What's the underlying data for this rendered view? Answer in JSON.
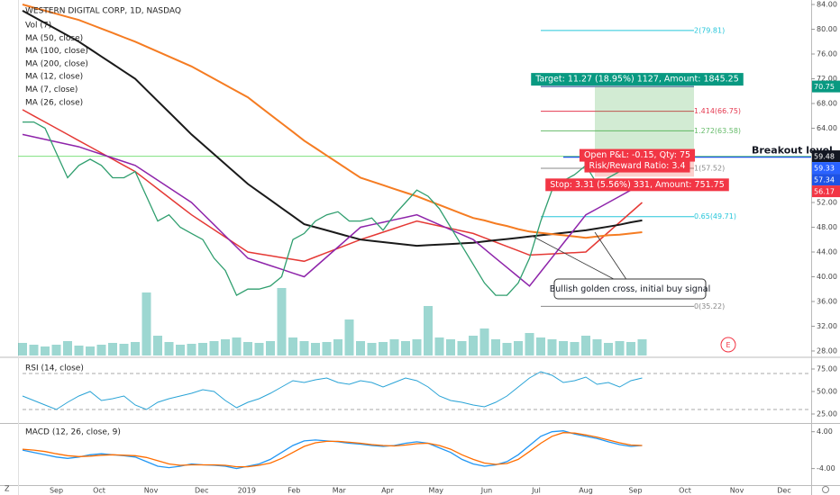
{
  "chart_data": [
    {
      "type": "line",
      "title": "WESTERN DIGITAL CORP, 1D, NASDAQ",
      "xlim": [
        0,
        70
      ],
      "xticks": [
        {
          "value": 3,
          "label": "Sep"
        },
        {
          "value": 6.8,
          "label": "Oct"
        },
        {
          "value": 11.4,
          "label": "Nov"
        },
        {
          "value": 15.9,
          "label": "Dec"
        },
        {
          "value": 19.9,
          "label": "2019"
        },
        {
          "value": 24.1,
          "label": "Feb"
        },
        {
          "value": 28.1,
          "label": "Mar"
        },
        {
          "value": 32.4,
          "label": "Apr"
        },
        {
          "value": 36.7,
          "label": "May"
        },
        {
          "value": 41.2,
          "label": "Jun"
        },
        {
          "value": 45.6,
          "label": "Jul"
        },
        {
          "value": 50,
          "label": "Aug"
        },
        {
          "value": 54.4,
          "label": "Sep"
        },
        {
          "value": 58.8,
          "label": "Oct"
        },
        {
          "value": 63.4,
          "label": "Nov"
        },
        {
          "value": 67.6,
          "label": "Dec"
        }
      ],
      "ylim": [
        27.27,
        84.73
      ],
      "yticks": [
        {
          "value": 84,
          "label": "84.00"
        },
        {
          "value": 80,
          "label": "80.00"
        },
        {
          "value": 76,
          "label": "76.00"
        },
        {
          "value": 72,
          "label": "72.00"
        },
        {
          "value": 68,
          "label": "68.00"
        },
        {
          "value": 64,
          "label": "64.00"
        },
        {
          "value": 52,
          "label": "52.00"
        },
        {
          "value": 48,
          "label": "48.00"
        },
        {
          "value": 44,
          "label": "44.00"
        },
        {
          "value": 40,
          "label": "40.00"
        },
        {
          "value": 36,
          "label": "36.00"
        },
        {
          "value": 32,
          "label": "32.00"
        },
        {
          "value": 28,
          "label": "28.00"
        }
      ],
      "price": {
        "color": "#2f9e6e",
        "values": [
          65,
          65,
          64,
          60,
          56,
          58,
          59,
          58,
          56,
          56,
          57,
          53,
          49,
          50,
          48,
          47,
          46,
          43,
          41,
          37,
          38,
          38,
          38.5,
          40,
          46,
          47,
          49,
          50,
          50.5,
          49,
          49,
          49.5,
          47.5,
          50,
          52,
          54,
          53,
          51,
          48,
          45,
          42,
          39,
          37,
          37,
          39,
          43,
          49,
          54,
          55.5,
          56.5,
          58,
          55,
          56,
          57,
          58,
          57.34
        ]
      },
      "volume": {
        "name": "Vol (7)",
        "color": "#26a69a",
        "vlim": [
          0,
          100
        ],
        "values": [
          14,
          12,
          10,
          12,
          16,
          11,
          10,
          12,
          14,
          13,
          15,
          70,
          22,
          15,
          12,
          13,
          14,
          16,
          18,
          20,
          15,
          14,
          16,
          75,
          20,
          16,
          14,
          15,
          18,
          40,
          16,
          14,
          15,
          18,
          16,
          18,
          55,
          20,
          18,
          16,
          22,
          30,
          18,
          14,
          16,
          25,
          20,
          18,
          16,
          15,
          22,
          18,
          14,
          16,
          15,
          18
        ]
      },
      "series": [
        {
          "name": "MA (50, close)",
          "color": "#e53935",
          "values": [
            67,
            66,
            65,
            64,
            63,
            62,
            61,
            60,
            59,
            58,
            57,
            55.6,
            54.2,
            52.8,
            51.4,
            50,
            48.8,
            47.6,
            46.4,
            45.2,
            44,
            43.7,
            43.4,
            43.1,
            42.8,
            42.5,
            43.2,
            43.9,
            44.6,
            45.3,
            46,
            46.6,
            47.2,
            47.8,
            48.4,
            49,
            48.6,
            48.2,
            47.8,
            47.4,
            47,
            46.3,
            45.6,
            44.9,
            44.2,
            43.5,
            43.6,
            43.7,
            43.8,
            43.9,
            44,
            45.6,
            47.2,
            48.8,
            50.4,
            52
          ]
        },
        {
          "name": "MA (100, close)",
          "color": "#1a1a1a",
          "values": [
            83,
            82,
            81,
            80,
            79,
            78,
            76.8,
            75.6,
            74.4,
            73.2,
            72,
            70.2,
            68.4,
            66.6,
            64.8,
            63,
            61.4,
            59.8,
            58.2,
            56.6,
            55,
            53.7,
            52.4,
            51.1,
            49.8,
            48.5,
            48,
            47.5,
            47,
            46.5,
            46,
            45.8,
            45.6,
            45.4,
            45.2,
            45,
            45.1,
            45.2,
            45.3,
            45.4,
            45.5,
            45.7,
            45.9,
            46.1,
            46.3,
            46.5,
            46.7,
            46.9,
            47.1,
            47.3,
            47.5,
            47.8,
            48.1,
            48.4,
            48.8,
            49.1
          ]
        },
        {
          "name": "MA (200, close)",
          "color": "#f57c22",
          "values": [
            84,
            83.5,
            83,
            82.5,
            82,
            81.5,
            80.8,
            80.1,
            79.4,
            78.7,
            78,
            77.2,
            76.4,
            75.6,
            74.8,
            74,
            73,
            72,
            71,
            70,
            69,
            67.6,
            66.2,
            64.8,
            63.4,
            62,
            60.8,
            59.6,
            58.4,
            57.2,
            56,
            55.4,
            54.8,
            54.2,
            53.6,
            53,
            52.3,
            51.6,
            50.9,
            50.2,
            49.5,
            49.1,
            48.6,
            48.2,
            47.7,
            47.3,
            47.1,
            46.9,
            46.7,
            46.5,
            46.3,
            46.5,
            46.7,
            46.8,
            47,
            47.2
          ]
        },
        {
          "name": "MA (26, close)",
          "color": "#8e24aa",
          "values": [
            63,
            62.6,
            62.2,
            61.8,
            61.4,
            61,
            60.4,
            59.8,
            59.2,
            58.6,
            58,
            56.8,
            55.6,
            54.4,
            53.2,
            52,
            50.2,
            48.4,
            46.6,
            44.8,
            43,
            42.4,
            41.8,
            41.2,
            40.6,
            40,
            41.6,
            43.2,
            44.8,
            46.4,
            48,
            48.4,
            48.8,
            49.2,
            49.6,
            50,
            49.2,
            48.4,
            47.6,
            46.8,
            46,
            44.5,
            43,
            41.5,
            40,
            38.5,
            40.8,
            43.1,
            45.4,
            47.7,
            50,
            51,
            52,
            53,
            54,
            55
          ]
        }
      ],
      "legend_extra": [
        "MA (12, close)",
        "MA (7, close)"
      ],
      "fib": {
        "start": 46,
        "end": 59.6,
        "levels": [
          {
            "value": 79.81,
            "label": "2(79.81)",
            "color": "#26c6da"
          },
          {
            "value": 70.75,
            "color": "#1e3a8a"
          },
          {
            "value": 66.75,
            "label": "1.414(66.75)",
            "color": "#e53950"
          },
          {
            "value": 63.58,
            "label": "1.272(63.58)",
            "color": "#66bb6a"
          },
          {
            "value": 57.52,
            "label": "1(57.52)",
            "color": "#888888"
          },
          {
            "value": 49.71,
            "label": "0.65(49.71)",
            "color": "#26c6da"
          },
          {
            "value": 35.22,
            "label": "0(35.22)",
            "color": "#888888"
          }
        ]
      },
      "position": {
        "start": 50.8,
        "end": 59.6,
        "entry": 59.48,
        "target": 70.75,
        "stop": 56.17,
        "target_label": "Target: 11.27 (18.95%) 1127, Amount: 1845.25",
        "pnl_label": "Open P&L: -0.15, Qty: 75",
        "rr_label": "Risk/Reward Ratio: 3.4",
        "stop_label": "Stop: 3.31 (5.56%) 331, Amount: 751.75"
      },
      "breakout": {
        "value": 59.33,
        "start": 48,
        "label": "Breakout level."
      },
      "annotation": "Bullish golden cross, initial buy signal",
      "price_tags": [
        {
          "value": 70.75,
          "color": "#089981"
        },
        {
          "value": 59.48,
          "color": "#131722"
        },
        {
          "value": 59.33,
          "color": "#2962ff"
        },
        {
          "value": 57.34,
          "color": "#1e53e5"
        },
        {
          "value": 56.17,
          "color": "#f23645"
        }
      ]
    },
    {
      "type": "line",
      "title": "RSI (14, close)",
      "ylim": [
        15,
        85
      ],
      "yticks": [
        {
          "value": 75,
          "label": "75.00"
        },
        {
          "value": 50,
          "label": "50.00"
        },
        {
          "value": 25,
          "label": "25.00"
        }
      ],
      "bands": [
        70,
        30
      ],
      "series": [
        {
          "color": "#29a3d6",
          "values": [
            45,
            40,
            35,
            30,
            38,
            45,
            50,
            40,
            42,
            45,
            35,
            30,
            38,
            42,
            45,
            48,
            52,
            50,
            40,
            32,
            38,
            42,
            48,
            55,
            62,
            60,
            63,
            65,
            60,
            58,
            62,
            60,
            55,
            60,
            65,
            62,
            55,
            45,
            40,
            38,
            35,
            33,
            38,
            45,
            55,
            65,
            72,
            68,
            60,
            62,
            66,
            58,
            60,
            55,
            62,
            65
          ]
        }
      ]
    },
    {
      "type": "line",
      "title": "MACD (12, 26, close, 9)",
      "ylim": [
        -7.4,
        5.5
      ],
      "yticks": [
        {
          "value": 4,
          "label": "4.00"
        },
        {
          "value": -4,
          "label": "-4.00"
        }
      ],
      "series": [
        {
          "color": "#2196f3",
          "values": [
            0,
            -0.5,
            -1,
            -1.5,
            -1.8,
            -1.5,
            -1,
            -0.8,
            -1,
            -1.2,
            -1.5,
            -2.5,
            -3.5,
            -3.8,
            -3.5,
            -3,
            -3.2,
            -3.3,
            -3.5,
            -4,
            -3.5,
            -3,
            -2,
            -0.5,
            1,
            2,
            2.2,
            2,
            1.8,
            1.5,
            1.3,
            1,
            0.8,
            1,
            1.5,
            1.8,
            1.5,
            0.5,
            -0.5,
            -2,
            -3,
            -3.5,
            -3.2,
            -2.5,
            -1,
            1,
            3,
            4,
            4.2,
            3.5,
            3,
            2.5,
            1.8,
            1.2,
            0.8,
            1
          ]
        },
        {
          "color": "#ff6d00",
          "values": [
            0.2,
            0,
            -0.3,
            -0.8,
            -1.2,
            -1.4,
            -1.3,
            -1.1,
            -1,
            -1.1,
            -1.2,
            -1.6,
            -2.3,
            -3,
            -3.3,
            -3.2,
            -3.2,
            -3.2,
            -3.3,
            -3.6,
            -3.6,
            -3.3,
            -2.8,
            -1.8,
            -0.5,
            0.8,
            1.6,
            1.9,
            1.9,
            1.7,
            1.5,
            1.2,
            1,
            0.9,
            1.1,
            1.4,
            1.5,
            1,
            0.2,
            -1,
            -2,
            -2.8,
            -3.1,
            -2.9,
            -2,
            -0.3,
            1.5,
            3,
            3.8,
            3.7,
            3.3,
            2.8,
            2.2,
            1.6,
            1.1,
            1
          ]
        }
      ]
    }
  ]
}
